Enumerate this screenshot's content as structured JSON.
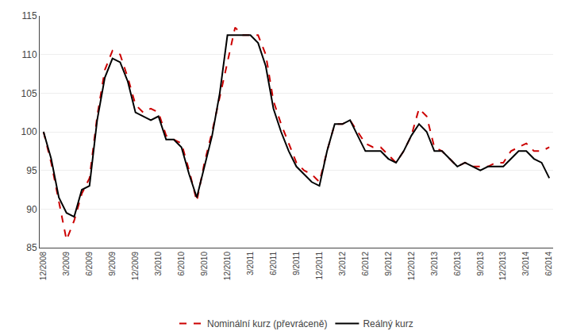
{
  "chart_data": {
    "type": "line",
    "categories": [
      "12/2008",
      null,
      null,
      "3/2009",
      null,
      null,
      "6/2009",
      null,
      null,
      "9/2009",
      null,
      null,
      "12/2009",
      null,
      null,
      "3/2010",
      null,
      null,
      "6/2010",
      null,
      null,
      "9/2010",
      null,
      null,
      "12/2010",
      null,
      null,
      "3/2011",
      null,
      null,
      "6/2011",
      null,
      null,
      "9/2011",
      null,
      null,
      "12/2011",
      null,
      null,
      "3/2012",
      null,
      null,
      "6/2012",
      null,
      null,
      "9/2012",
      null,
      null,
      "12/2012",
      null,
      null,
      "3/2013",
      null,
      null,
      "6/2013",
      null,
      null,
      "9/2013",
      null,
      null,
      "12/2013",
      null,
      null,
      "3/2014",
      null,
      null,
      "6/2014"
    ],
    "series": [
      {
        "name": "Nominální kurz (převráceně)",
        "color": "#cc0000",
        "line_style": "dashed",
        "values": [
          100.0,
          96.0,
          91.0,
          86.0,
          88.5,
          92.0,
          94.0,
          102.0,
          108.0,
          110.5,
          110.0,
          107.0,
          103.5,
          102.5,
          103.0,
          102.5,
          99.5,
          99.0,
          98.5,
          95.0,
          91.0,
          96.0,
          100.0,
          104.5,
          109.0,
          113.5,
          112.5,
          112.5,
          112.5,
          110.0,
          104.0,
          101.0,
          98.5,
          96.0,
          95.0,
          94.5,
          93.5,
          97.5,
          101.0,
          101.0,
          101.5,
          100.0,
          98.5,
          98.0,
          98.0,
          97.0,
          96.0,
          97.5,
          99.5,
          103.0,
          102.0,
          98.0,
          97.5,
          96.5,
          95.5,
          96.0,
          95.5,
          95.5,
          95.5,
          96.0,
          96.0,
          97.5,
          98.0,
          98.5,
          97.5,
          97.5,
          98.0
        ]
      },
      {
        "name": "Reálný kurz",
        "color": "#000000",
        "line_style": "solid",
        "values": [
          100.0,
          96.5,
          91.5,
          89.5,
          89.0,
          92.5,
          93.0,
          101.5,
          107.0,
          109.5,
          109.0,
          106.5,
          102.5,
          102.0,
          101.5,
          102.0,
          99.0,
          99.0,
          98.0,
          94.5,
          91.5,
          95.5,
          99.5,
          105.0,
          112.5,
          112.5,
          112.5,
          112.5,
          111.5,
          108.5,
          103.0,
          100.0,
          97.5,
          95.5,
          94.5,
          93.5,
          93.0,
          97.5,
          101.0,
          101.0,
          101.5,
          99.5,
          97.5,
          97.5,
          97.5,
          96.5,
          96.0,
          97.5,
          99.5,
          101.0,
          100.0,
          97.5,
          97.5,
          96.5,
          95.5,
          96.0,
          95.5,
          95.0,
          95.5,
          95.5,
          95.5,
          96.5,
          97.5,
          97.5,
          96.5,
          96.0,
          94.0
        ]
      }
    ],
    "ylim": [
      85,
      115
    ],
    "yticks": [
      85,
      90,
      95,
      100,
      105,
      110,
      115
    ],
    "grid": true,
    "legend": "bottom"
  }
}
